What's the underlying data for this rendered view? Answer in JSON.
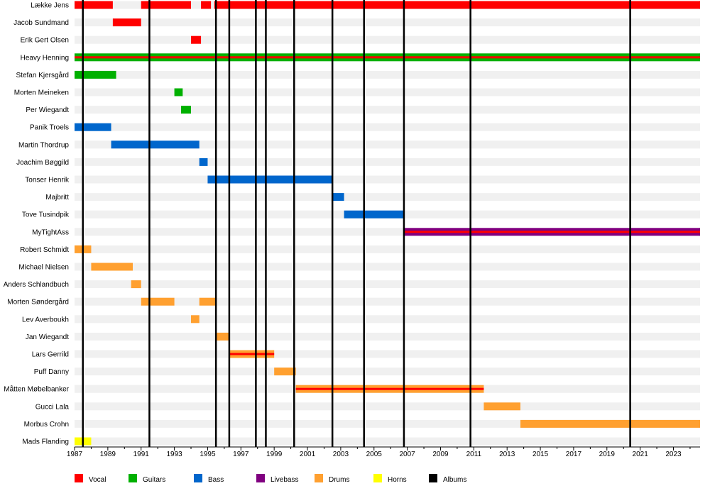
{
  "chart_data": {
    "type": "timeline",
    "title": "",
    "members": [
      "Lække Jens",
      "Jacob Sundmand",
      "Erik Gert Olsen",
      "Heavy Henning",
      "Stefan Kjersgård",
      "Morten Meineken",
      "Per Wiegandt",
      "Panik Troels",
      "Martin Thordrup",
      "Joachim Bøggild",
      "Tonser Henrik",
      "Majbritt",
      "Tove Tusindpik",
      "MyTightAss",
      "Robert Schmidt",
      "Michael Nielsen",
      "Anders Schlandbuch",
      "Morten Søndergård",
      "Lev Averboukh",
      "Jan Wiegandt",
      "Lars Gerrild",
      "Puff Danny",
      "Måtten Møbelbanker",
      "Gucci Lala",
      "Morbus Crohn",
      "Mads Flanding"
    ],
    "roles": [
      {
        "key": "vocal",
        "label": "Vocal",
        "color": "#ff0000"
      },
      {
        "key": "guitars",
        "label": "Guitars",
        "color": "#00b000"
      },
      {
        "key": "bass",
        "label": "Bass",
        "color": "#0066cc"
      },
      {
        "key": "livebass",
        "label": "Livebass",
        "color": "#800080"
      },
      {
        "key": "drums",
        "label": "Drums",
        "color": "#ffa030"
      },
      {
        "key": "horns",
        "label": "Horns",
        "color": "#ffff00"
      },
      {
        "key": "albums",
        "label": "Albums",
        "color": "#000000"
      }
    ],
    "bars": [
      {
        "member": 0,
        "role": "vocal",
        "start": 1987.0,
        "end": 1989.3
      },
      {
        "member": 0,
        "role": "vocal",
        "start": 1991.0,
        "end": 1994.0
      },
      {
        "member": 0,
        "role": "vocal",
        "start": 1994.6,
        "end": 1995.2
      },
      {
        "member": 0,
        "role": "vocal",
        "start": 1995.4,
        "end": 2024.6
      },
      {
        "member": 1,
        "role": "vocal",
        "start": 1989.3,
        "end": 1991.0
      },
      {
        "member": 2,
        "role": "vocal",
        "start": 1994.0,
        "end": 1994.6
      },
      {
        "member": 3,
        "role": "guitars",
        "start": 1987.0,
        "end": 2024.6,
        "overlay": "vocal"
      },
      {
        "member": 4,
        "role": "guitars",
        "start": 1987.0,
        "end": 1989.5
      },
      {
        "member": 5,
        "role": "guitars",
        "start": 1993.0,
        "end": 1993.5
      },
      {
        "member": 6,
        "role": "guitars",
        "start": 1993.4,
        "end": 1994.0
      },
      {
        "member": 7,
        "role": "bass",
        "start": 1987.0,
        "end": 1989.2
      },
      {
        "member": 8,
        "role": "bass",
        "start": 1989.2,
        "end": 1994.5
      },
      {
        "member": 9,
        "role": "bass",
        "start": 1994.5,
        "end": 1995.0
      },
      {
        "member": 10,
        "role": "bass",
        "start": 1995.0,
        "end": 2002.5
      },
      {
        "member": 11,
        "role": "bass",
        "start": 2002.5,
        "end": 2003.2
      },
      {
        "member": 12,
        "role": "bass",
        "start": 2003.2,
        "end": 2006.8
      },
      {
        "member": 13,
        "role": "livebass",
        "start": 2006.8,
        "end": 2024.6,
        "overlay": "vocal"
      },
      {
        "member": 14,
        "role": "drums",
        "start": 1987.0,
        "end": 1988.0
      },
      {
        "member": 15,
        "role": "drums",
        "start": 1988.0,
        "end": 1990.5
      },
      {
        "member": 16,
        "role": "drums",
        "start": 1990.4,
        "end": 1991.0
      },
      {
        "member": 17,
        "role": "drums",
        "start": 1991.0,
        "end": 1993.0
      },
      {
        "member": 17,
        "role": "drums",
        "start": 1994.5,
        "end": 1995.5
      },
      {
        "member": 18,
        "role": "drums",
        "start": 1994.0,
        "end": 1994.5
      },
      {
        "member": 19,
        "role": "drums",
        "start": 1995.5,
        "end": 1996.3
      },
      {
        "member": 20,
        "role": "drums",
        "start": 1996.3,
        "end": 1999.0,
        "overlay": "vocal"
      },
      {
        "member": 21,
        "role": "drums",
        "start": 1999.0,
        "end": 2000.3
      },
      {
        "member": 22,
        "role": "drums",
        "start": 2000.3,
        "end": 2011.6,
        "overlay": "vocal"
      },
      {
        "member": 23,
        "role": "drums",
        "start": 2011.6,
        "end": 2013.8
      },
      {
        "member": 24,
        "role": "drums",
        "start": 2013.8,
        "end": 2024.6
      },
      {
        "member": 25,
        "role": "horns",
        "start": 1987.0,
        "end": 1988.0
      }
    ],
    "albums": [
      1987.5,
      1991.5,
      1995.5,
      1996.3,
      1997.9,
      1998.5,
      2000.2,
      2002.5,
      2004.4,
      2006.8,
      2010.8,
      2020.4
    ],
    "xticks": [
      "1987",
      "1989",
      "1991",
      "1993",
      "1995",
      "1997",
      "1999",
      "2001",
      "2003",
      "2005",
      "2007",
      "2009",
      "2011",
      "2013",
      "2015",
      "2017",
      "2019",
      "2021",
      "2023"
    ],
    "xlim": [
      1987,
      2024.6
    ],
    "legend_position": "bottom"
  }
}
